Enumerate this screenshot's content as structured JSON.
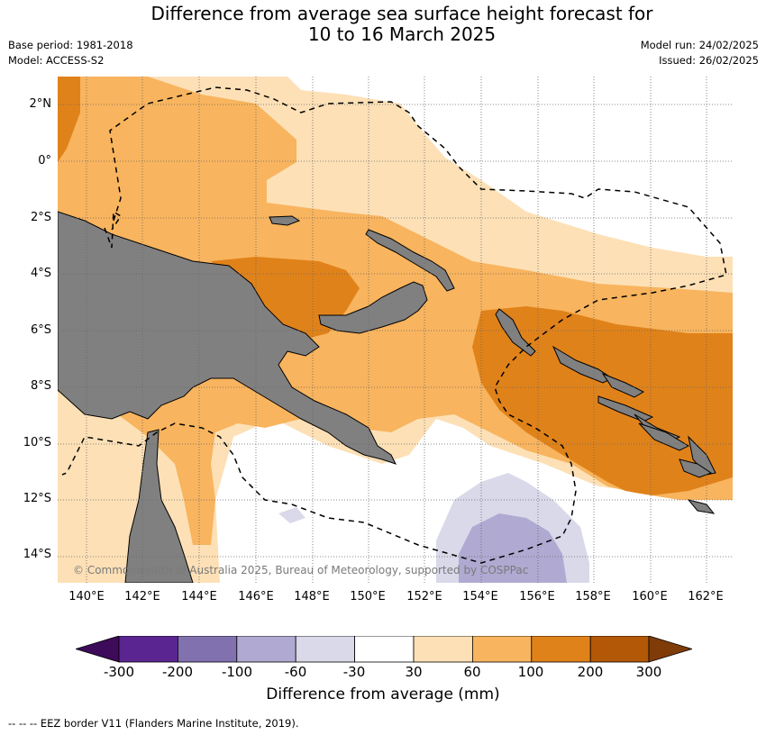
{
  "title_line1": "Difference from average sea surface height forecast for",
  "title_line2": "10 to 16 March 2025",
  "base_period": "Base period: 1981-2018",
  "model": "Model: ACCESS-S2",
  "model_run": "Model run: 24/02/2025",
  "issued": "Issued: 26/02/2025",
  "lat_labels": [
    "2°N",
    "0°",
    "2°S",
    "4°S",
    "6°S",
    "8°S",
    "10°S",
    "12°S",
    "14°S"
  ],
  "lon_labels": [
    "140°E",
    "142°E",
    "144°E",
    "146°E",
    "148°E",
    "150°E",
    "152°E",
    "154°E",
    "156°E",
    "158°E",
    "160°E",
    "162°E"
  ],
  "copyright": "© Commonwealth of Australia 2025, Bureau of Meteorology, supported by COSPPac",
  "colorbar": {
    "title": "Difference from average (mm)",
    "ticks": [
      "-300",
      "-200",
      "-100",
      "-60",
      "-30",
      "30",
      "60",
      "100",
      "200",
      "300"
    ],
    "colors": [
      "#3d0b5a",
      "#5a2590",
      "#8171ae",
      "#b0a9d1",
      "#d9d9ea",
      "#ffffff",
      "#fde0b6",
      "#f8b45e",
      "#e0821a",
      "#b35806",
      "#7f3b08"
    ]
  },
  "eez_legend": "--  --  -- EEZ border V11 (Flanders Marine Institute, 2019).",
  "colors": {
    "land": "#808080",
    "grid": "#666666",
    "eez": "#000000"
  }
}
